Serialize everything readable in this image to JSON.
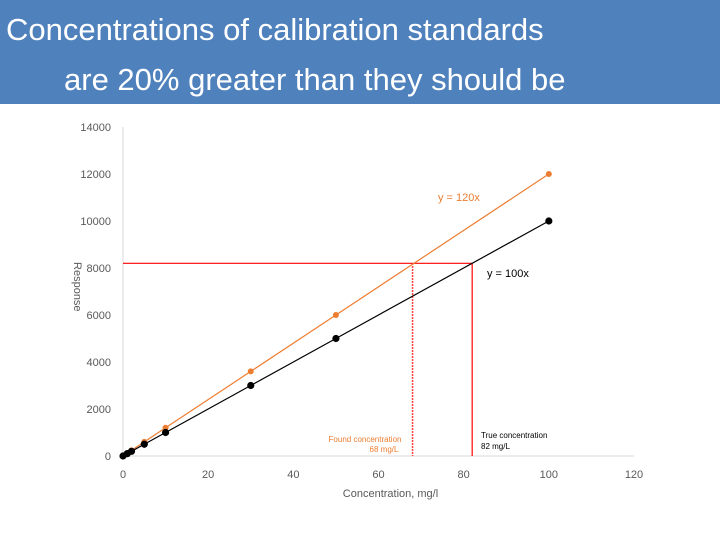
{
  "slide": {
    "title_line1": "Concentrations of calibration standards",
    "title_line2": "are 20% greater than they should be"
  },
  "chart_data": {
    "type": "scatter",
    "xlabel": "Concentration, mg/l",
    "ylabel": "Response",
    "xlim": [
      0,
      120
    ],
    "ylim": [
      0,
      14000
    ],
    "x_ticks": [
      0,
      20,
      40,
      60,
      80,
      100,
      120
    ],
    "y_ticks": [
      0,
      2000,
      4000,
      6000,
      8000,
      10000,
      12000,
      14000
    ],
    "grid": false,
    "series": [
      {
        "name": "y = 120x",
        "color": "#ed7d31",
        "points": [
          [
            0,
            0
          ],
          [
            1,
            120
          ],
          [
            2,
            240
          ],
          [
            5,
            600
          ],
          [
            10,
            1200
          ],
          [
            30,
            3600
          ],
          [
            50,
            6000
          ],
          [
            100,
            12000
          ]
        ]
      },
      {
        "name": "y = 100x",
        "color": "#000000",
        "points": [
          [
            0,
            0
          ],
          [
            1,
            100
          ],
          [
            2,
            200
          ],
          [
            5,
            500
          ],
          [
            10,
            1000
          ],
          [
            30,
            3000
          ],
          [
            50,
            5000
          ],
          [
            100,
            10000
          ]
        ]
      }
    ],
    "reference_lines": {
      "response_level": 8200,
      "found_concentration": 68,
      "true_concentration": 82,
      "color": "#ff0000"
    },
    "annotations": {
      "found_label_line1": "Found concentration",
      "found_label_line2": "68 mg/L",
      "true_label_line1": "True concentration",
      "true_label_line2": "82 mg/L"
    }
  }
}
